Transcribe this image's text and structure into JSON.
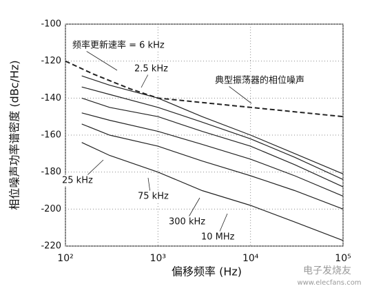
{
  "chart_data": {
    "type": "line",
    "x_label": "偏移频率 (Hz)",
    "y_label": "相位噪声功率谱密度 (dBc/Hz)",
    "xscale": "log",
    "grid": true,
    "xlim": [
      100,
      100000
    ],
    "xticks": [
      {
        "value": 100,
        "label": "10²"
      },
      {
        "value": 1000,
        "label": "10³"
      },
      {
        "value": 10000,
        "label": "10⁴"
      },
      {
        "value": 100000,
        "label": "10⁵"
      }
    ],
    "ylim": [
      -220,
      -100
    ],
    "yticks": [
      -220,
      -200,
      -180,
      -160,
      -140,
      -120,
      -100
    ],
    "series": [
      {
        "name": "频率更新速率 = 6 kHz",
        "color": "#222",
        "x": [
          150,
          300,
          1000,
          3000,
          10000,
          30000,
          100000
        ],
        "values": [
          -128,
          -133,
          -140,
          -150,
          -160,
          -170,
          -181
        ]
      },
      {
        "name": "2.5 kHz",
        "color": "#222",
        "x": [
          150,
          300,
          1000,
          3000,
          10000,
          30000,
          100000
        ],
        "values": [
          -134,
          -138,
          -145,
          -153,
          -162,
          -172,
          -184
        ]
      },
      {
        "name": "25 kHz",
        "color": "#222",
        "x": [
          150,
          300,
          1000,
          3000,
          10000,
          30000,
          100000
        ],
        "values": [
          -140,
          -145,
          -150,
          -158,
          -166,
          -176,
          -188
        ]
      },
      {
        "name": "75 kHz",
        "color": "#222",
        "x": [
          150,
          300,
          1000,
          3000,
          10000,
          30000,
          100000
        ],
        "values": [
          -148,
          -152,
          -158,
          -165,
          -173,
          -182,
          -193
        ]
      },
      {
        "name": "300 kHz",
        "color": "#222",
        "x": [
          150,
          300,
          1000,
          3000,
          10000,
          30000,
          100000
        ],
        "values": [
          -154,
          -160,
          -166,
          -174,
          -182,
          -190,
          -200
        ]
      },
      {
        "name": "10 MHz",
        "color": "#222",
        "x": [
          150,
          300,
          1000,
          3000,
          10000,
          30000,
          100000
        ],
        "values": [
          -164,
          -171,
          -180,
          -190,
          -198,
          -207,
          -217
        ]
      },
      {
        "name": "典型振荡器的相位噪声",
        "color": "#222",
        "dashed": true,
        "x": [
          100,
          200,
          500,
          1000,
          10000,
          100000
        ],
        "values": [
          -120,
          -127,
          -135,
          -140,
          -145,
          -150
        ]
      }
    ],
    "watermark": [
      "电子发烧友",
      "www.elecfans.com"
    ]
  }
}
